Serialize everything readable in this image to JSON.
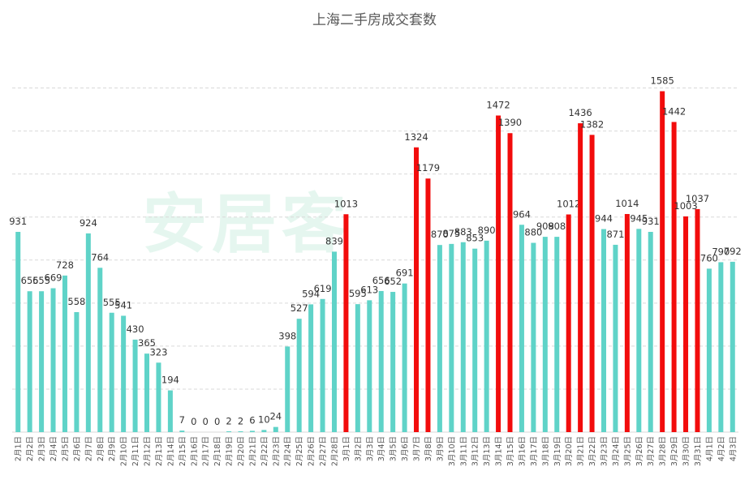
{
  "chart_data": {
    "type": "bar",
    "title": "上海二手房成交套数",
    "xlabel": "",
    "ylabel": "",
    "ylim": [
      0,
      1700
    ],
    "grid": "horizontal-dashed",
    "colors": {
      "normal": "#5fd3c8",
      "highlight": "#f20c0c",
      "grid": "#d9d9d9"
    },
    "highlight_threshold": 1000,
    "categories": [
      "2月1日",
      "2月2日",
      "2月3日",
      "2月4日",
      "2月5日",
      "2月6日",
      "2月7日",
      "2月8日",
      "2月9日",
      "2月10日",
      "2月11日",
      "2月12日",
      "2月13日",
      "2月14日",
      "2月15日",
      "2月16日",
      "2月17日",
      "2月18日",
      "2月19日",
      "2月20日",
      "2月21日",
      "2月22日",
      "2月23日",
      "2月24日",
      "2月25日",
      "2月26日",
      "2月27日",
      "2月28日",
      "3月1日",
      "3月2日",
      "3月3日",
      "3月4日",
      "3月5日",
      "3月6日",
      "3月7日",
      "3月8日",
      "3月9日",
      "3月10日",
      "3月11日",
      "3月12日",
      "3月13日",
      "3月14日",
      "3月15日",
      "3月16日",
      "3月17日",
      "3月18日",
      "3月19日",
      "3月20日",
      "3月21日",
      "3月22日",
      "3月23日",
      "3月24日",
      "3月25日",
      "3月26日",
      "3月27日",
      "3月28日",
      "3月29日",
      "3月30日",
      "3月31日",
      "4月1日",
      "4月2日",
      "4月3日"
    ],
    "values": [
      931,
      655,
      655,
      669,
      728,
      558,
      924,
      764,
      555,
      541,
      430,
      365,
      323,
      194,
      7,
      0,
      0,
      0,
      2,
      2,
      6,
      10,
      24,
      398,
      527,
      594,
      619,
      839,
      1013,
      595,
      613,
      656,
      652,
      691,
      1324,
      1179,
      870,
      875,
      883,
      853,
      890,
      1472,
      1390,
      964,
      880,
      908,
      908,
      1012,
      1436,
      1382,
      944,
      871,
      1014,
      945,
      931,
      1585,
      1442,
      1003,
      1037,
      760,
      790,
      792
    ]
  },
  "watermark": {
    "text": "安居客"
  }
}
